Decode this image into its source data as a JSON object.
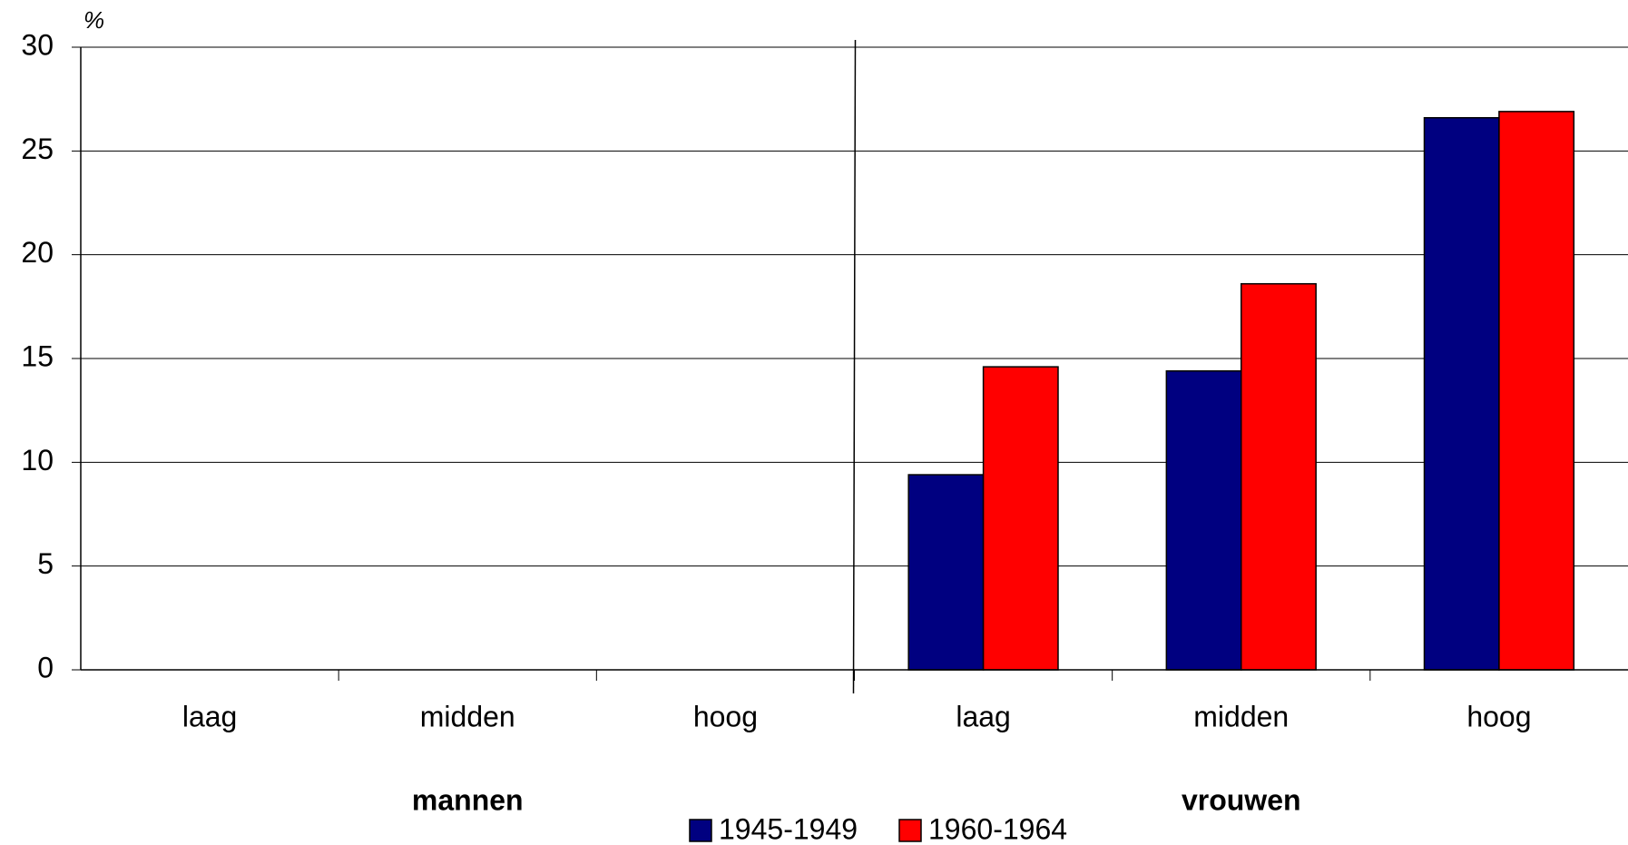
{
  "chart_data": {
    "type": "bar",
    "y_unit_label": "%",
    "categories": [
      "laag",
      "midden",
      "hoog",
      "laag",
      "midden",
      "hoog"
    ],
    "groups": [
      "mannen",
      "vrouwen"
    ],
    "series": [
      {
        "name": "1945-1949",
        "color": "#000080",
        "values": [
          null,
          null,
          null,
          9.4,
          14.4,
          26.6
        ]
      },
      {
        "name": "1960-1964",
        "color": "#ff0000",
        "values": [
          null,
          null,
          null,
          14.6,
          18.6,
          26.9
        ]
      }
    ],
    "ylim": [
      0,
      30
    ],
    "yticks": [
      0,
      5,
      10,
      15,
      20,
      25,
      30
    ],
    "grid": true
  }
}
